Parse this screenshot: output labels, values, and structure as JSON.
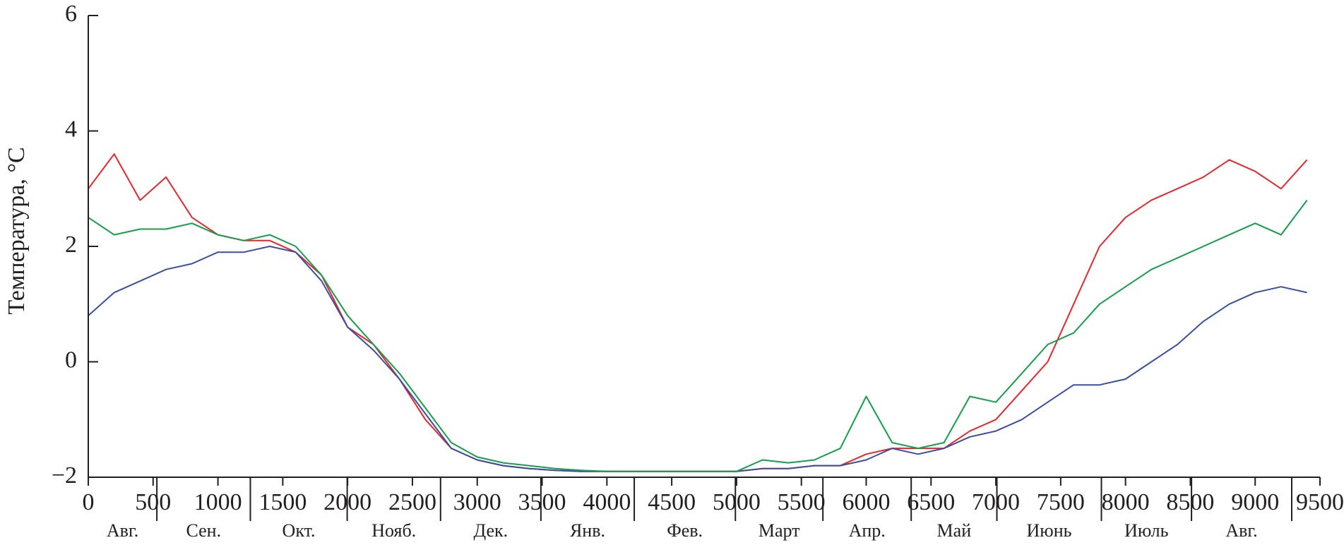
{
  "chart_data": {
    "type": "line",
    "ylabel": "Температура, °C",
    "xlim": [
      0,
      9500
    ],
    "ylim": [
      -2,
      6
    ],
    "xticks": [
      0,
      500,
      1000,
      1500,
      2000,
      2500,
      3000,
      3500,
      4000,
      4500,
      5000,
      5500,
      6000,
      6500,
      7000,
      7500,
      8000,
      8500,
      9000,
      9500
    ],
    "yticks": [
      {
        "value": -2,
        "label": "−2"
      },
      0,
      2,
      4,
      6
    ],
    "months": [
      "Авг.",
      "Сен.",
      "Окт.",
      "Нояб.",
      "Дек.",
      "Янв.",
      "Фев.",
      "Март",
      "Апр.",
      "Май",
      "Июнь",
      "Июль",
      "Авг."
    ],
    "month_edges": [
      529,
      1250,
      1997,
      2717,
      3491,
      4211,
      4991,
      5666,
      6347,
      7008,
      7814,
      8509,
      9282
    ],
    "x": [
      0,
      200,
      400,
      600,
      800,
      1000,
      1200,
      1400,
      1600,
      1800,
      2000,
      2200,
      2400,
      2600,
      2800,
      3000,
      3200,
      3400,
      3600,
      3800,
      4000,
      4200,
      4400,
      4600,
      4800,
      5000,
      5200,
      5400,
      5600,
      5800,
      6000,
      6200,
      6400,
      6600,
      6800,
      7000,
      7200,
      7400,
      7600,
      7800,
      8000,
      8200,
      8400,
      8600,
      8800,
      9000,
      9200,
      9400
    ],
    "series": [
      {
        "color": "#e8262b",
        "values": [
          3.0,
          3.6,
          2.8,
          3.2,
          2.5,
          2.2,
          2.1,
          2.1,
          1.9,
          1.5,
          0.6,
          0.3,
          -0.3,
          -1.0,
          -1.5,
          -1.7,
          -1.8,
          -1.85,
          -1.88,
          -1.9,
          -1.9,
          -1.9,
          -1.9,
          -1.9,
          -1.9,
          -1.9,
          -1.85,
          -1.85,
          -1.8,
          -1.8,
          -1.6,
          -1.5,
          -1.5,
          -1.5,
          -1.2,
          -1.0,
          -0.5,
          0.0,
          1.0,
          2.0,
          2.5,
          2.8,
          3.0,
          3.2,
          3.5,
          3.3,
          3.0,
          3.5
        ]
      },
      {
        "color": "#3a4fa3",
        "values": [
          0.8,
          1.2,
          1.4,
          1.6,
          1.7,
          1.9,
          1.9,
          2.0,
          1.9,
          1.4,
          0.6,
          0.2,
          -0.3,
          -0.9,
          -1.5,
          -1.7,
          -1.8,
          -1.85,
          -1.88,
          -1.9,
          -1.9,
          -1.9,
          -1.9,
          -1.9,
          -1.9,
          -1.9,
          -1.85,
          -1.85,
          -1.8,
          -1.8,
          -1.7,
          -1.5,
          -1.6,
          -1.5,
          -1.3,
          -1.2,
          -1.0,
          -0.7,
          -0.4,
          -0.4,
          -0.3,
          0.0,
          0.3,
          0.7,
          1.0,
          1.2,
          1.3,
          1.2
        ]
      },
      {
        "color": "#12a04a",
        "values": [
          2.5,
          2.2,
          2.3,
          2.3,
          2.4,
          2.2,
          2.1,
          2.2,
          2.0,
          1.5,
          0.8,
          0.3,
          -0.2,
          -0.8,
          -1.4,
          -1.65,
          -1.75,
          -1.8,
          -1.85,
          -1.88,
          -1.9,
          -1.9,
          -1.9,
          -1.9,
          -1.9,
          -1.9,
          -1.7,
          -1.75,
          -1.7,
          -1.5,
          -0.6,
          -1.4,
          -1.5,
          -1.4,
          -0.6,
          -0.7,
          -0.2,
          0.3,
          0.5,
          1.0,
          1.3,
          1.6,
          1.8,
          2.0,
          2.2,
          2.4,
          2.2,
          2.8
        ]
      }
    ]
  }
}
